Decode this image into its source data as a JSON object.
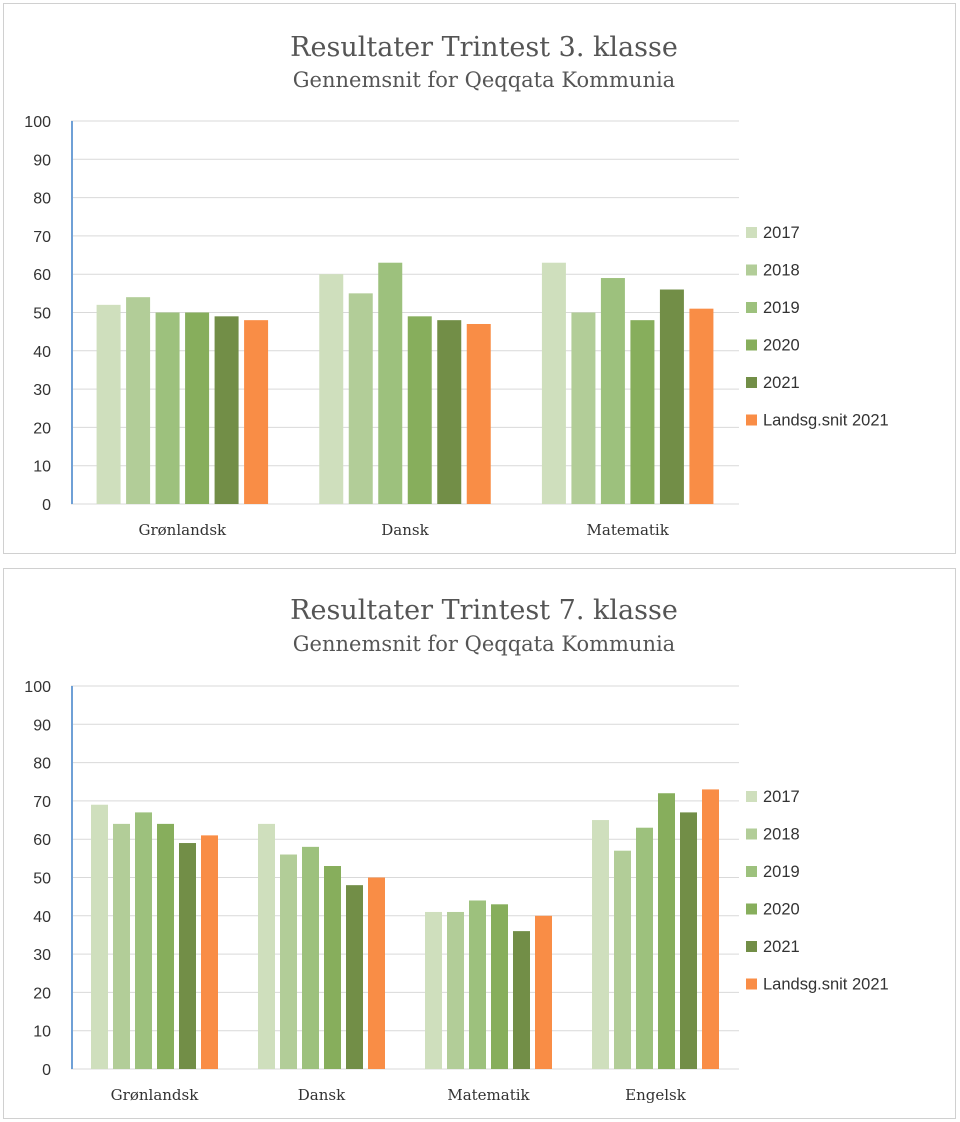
{
  "chart_data": [
    {
      "type": "bar",
      "title": "Resultater Trintest 3. klasse",
      "subtitle": "Gennemsnit for Qeqqata Kommunia",
      "categories": [
        "Grønlandsk",
        "Dansk",
        "Matematik"
      ],
      "ylim": [
        0,
        100
      ],
      "yticks": [
        0,
        10,
        20,
        30,
        40,
        50,
        60,
        70,
        80,
        90,
        100
      ],
      "grid": true,
      "legend_position": "right",
      "series": [
        {
          "name": "2017",
          "color": "#cfdfbd",
          "values": [
            52,
            60,
            63
          ]
        },
        {
          "name": "2018",
          "color": "#b2cd98",
          "values": [
            54,
            55,
            50
          ]
        },
        {
          "name": "2019",
          "color": "#9dc17d",
          "values": [
            50,
            63,
            59
          ]
        },
        {
          "name": "2020",
          "color": "#87ae5c",
          "values": [
            50,
            49,
            48
          ]
        },
        {
          "name": "2021",
          "color": "#728e47",
          "values": [
            49,
            48,
            56
          ]
        },
        {
          "name": "Landsg.snit 2021",
          "color": "#f98d46",
          "values": [
            48,
            47,
            51
          ]
        }
      ]
    },
    {
      "type": "bar",
      "title": "Resultater Trintest 7. klasse",
      "subtitle": "Gennemsnit for Qeqqata Kommunia",
      "categories": [
        "Grønlandsk",
        "Dansk",
        "Matematik",
        "Engelsk"
      ],
      "ylim": [
        0,
        100
      ],
      "yticks": [
        0,
        10,
        20,
        30,
        40,
        50,
        60,
        70,
        80,
        90,
        100
      ],
      "grid": true,
      "legend_position": "right",
      "series": [
        {
          "name": "2017",
          "color": "#cfdfbd",
          "values": [
            69,
            64,
            41,
            65
          ]
        },
        {
          "name": "2018",
          "color": "#b2cd98",
          "values": [
            64,
            56,
            41,
            57
          ]
        },
        {
          "name": "2019",
          "color": "#9dc17d",
          "values": [
            67,
            58,
            44,
            63
          ]
        },
        {
          "name": "2020",
          "color": "#87ae5c",
          "values": [
            64,
            53,
            43,
            72
          ]
        },
        {
          "name": "2021",
          "color": "#728e47",
          "values": [
            59,
            48,
            36,
            67
          ]
        },
        {
          "name": "Landsg.snit 2021",
          "color": "#f98d46",
          "values": [
            61,
            50,
            40,
            73
          ]
        }
      ]
    }
  ]
}
